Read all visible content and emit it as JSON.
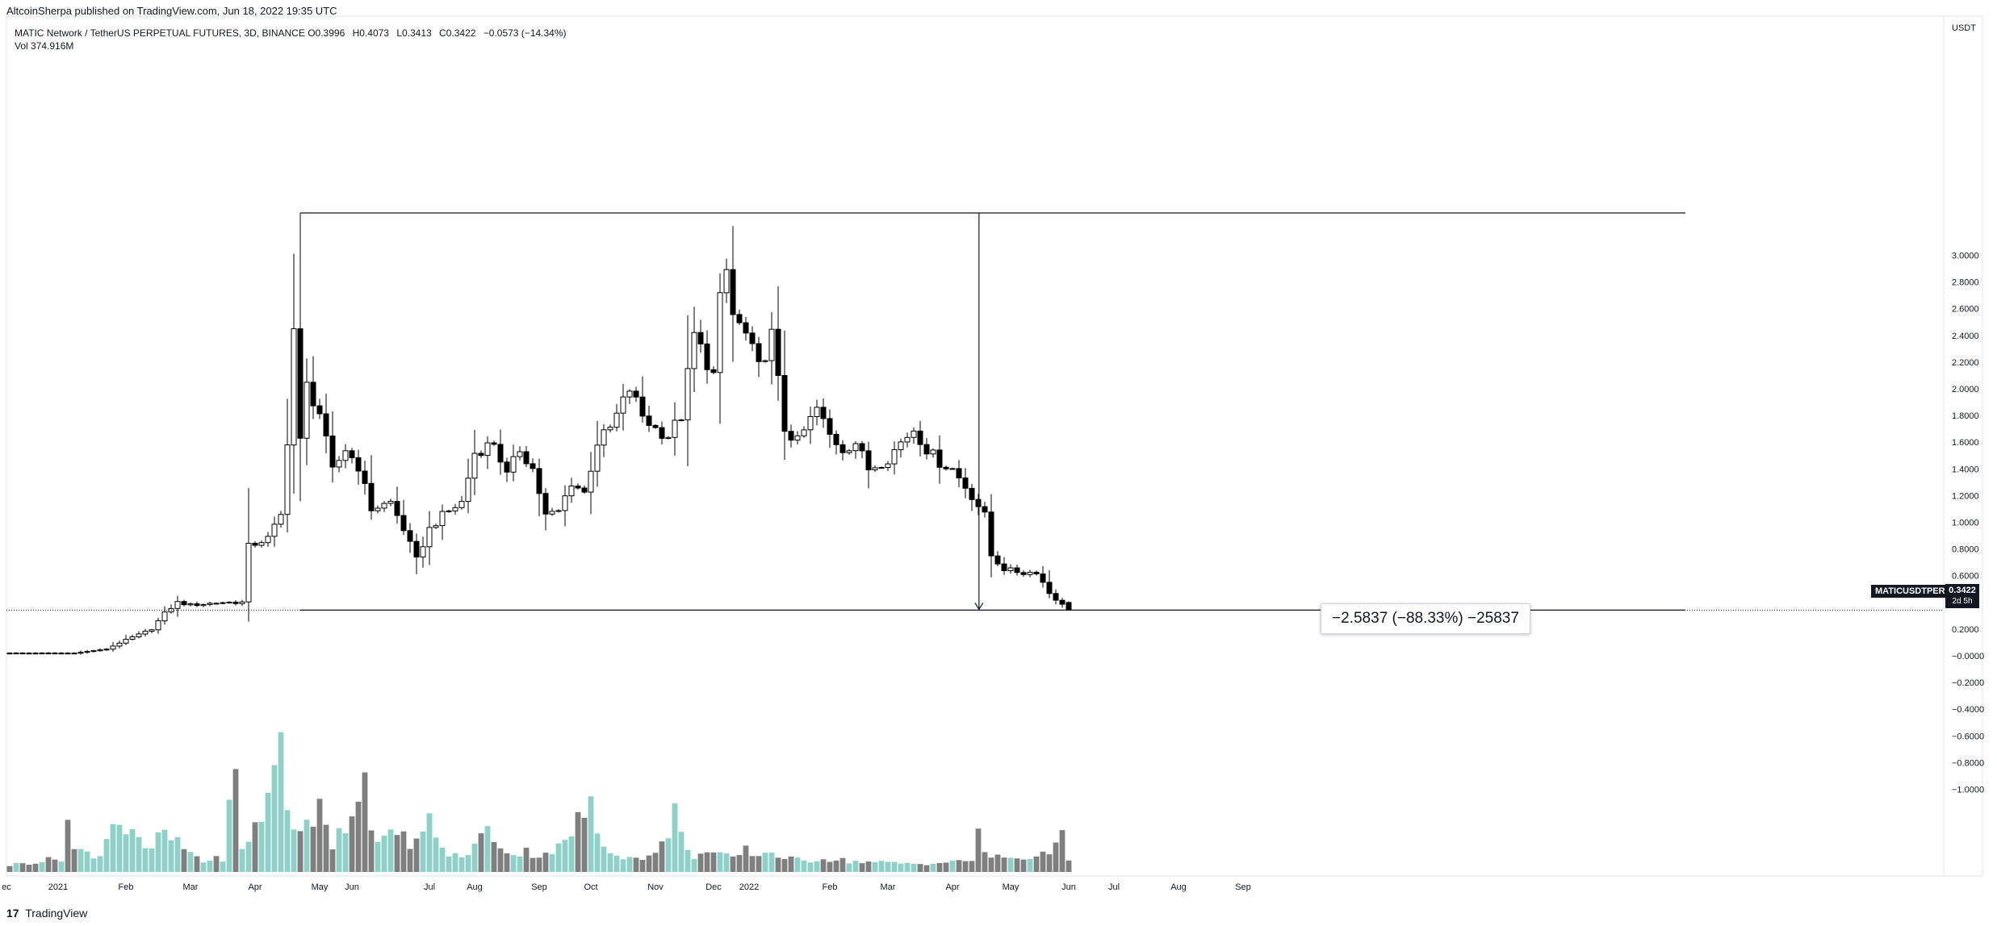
{
  "header": {
    "publisher": "AltcoinSherpa published on TradingView.com, Jun 18, 2022 19:35 UTC",
    "symbol": "MATIC Network / TetherUS PERPETUAL FUTURES, 3D, BINANCE",
    "ohlc": {
      "o": "O0.3996",
      "h": "H0.4073",
      "l": "L0.3413",
      "c": "C0.3422",
      "chg": "−0.0573 (−14.34%)"
    },
    "volume": "Vol  374.916M"
  },
  "axis_currency": "USDT",
  "symbol_tag": "MATICUSDTPERP",
  "last_price": "0.3422",
  "countdown": "2d 5h",
  "measure_label": "−2.5837 (−88.33%) −25837",
  "footer": {
    "logo_mark": "17",
    "brand": "TradingView"
  },
  "colors": {
    "up": "#ffffff",
    "down": "#000000",
    "vol_up": "#8fd1c9",
    "vol_down": "#7f7f7f",
    "outline": "#000000"
  },
  "chart_data": {
    "type": "candlestick",
    "timeframe": "3D",
    "y_ticks": [
      "3.0000",
      "2.8000",
      "2.6000",
      "2.4000",
      "2.2000",
      "2.0000",
      "1.8000",
      "1.6000",
      "1.4000",
      "1.2000",
      "1.0000",
      "0.8000",
      "0.6000",
      "0.4000",
      "0.2000",
      "−0.0000",
      "−0.2000",
      "−0.4000",
      "−0.6000",
      "−0.8000",
      "−1.0000"
    ],
    "x_ticks": [
      "ec",
      "2021",
      "Feb",
      "Mar",
      "Apr",
      "May",
      "Jun",
      "Jul",
      "Aug",
      "Sep",
      "Oct",
      "Nov",
      "Dec",
      "2022",
      "Feb",
      "Mar",
      "Apr",
      "May",
      "Jun",
      "Jul",
      "Aug",
      "Sep"
    ],
    "ylim": [
      -1.0,
      3.0
    ],
    "price_keys": [
      [
        0,
        0.02
      ],
      [
        10,
        0.02
      ],
      [
        15,
        0.05
      ],
      [
        18,
        0.12
      ],
      [
        22,
        0.2
      ],
      [
        24,
        0.32
      ],
      [
        26,
        0.4
      ],
      [
        28,
        0.38
      ],
      [
        33,
        0.4
      ],
      [
        36,
        0.4
      ],
      [
        37,
        0.82
      ],
      [
        40,
        0.88
      ],
      [
        42,
        1.05
      ],
      [
        43,
        1.62
      ],
      [
        44,
        2.45
      ],
      [
        45,
        1.6
      ],
      [
        46,
        2.02
      ],
      [
        48,
        1.82
      ],
      [
        50,
        1.38
      ],
      [
        52,
        1.55
      ],
      [
        54,
        1.42
      ],
      [
        56,
        1.1
      ],
      [
        59,
        1.15
      ],
      [
        61,
        0.95
      ],
      [
        63,
        0.72
      ],
      [
        65,
        0.95
      ],
      [
        67,
        1.05
      ],
      [
        70,
        1.15
      ],
      [
        72,
        1.52
      ],
      [
        75,
        1.6
      ],
      [
        77,
        1.35
      ],
      [
        79,
        1.55
      ],
      [
        81,
        1.4
      ],
      [
        83,
        1.05
      ],
      [
        85,
        1.08
      ],
      [
        87,
        1.3
      ],
      [
        89,
        1.22
      ],
      [
        91,
        1.6
      ],
      [
        93,
        1.7
      ],
      [
        96,
        2.0
      ],
      [
        98,
        1.8
      ],
      [
        100,
        1.7
      ],
      [
        102,
        1.65
      ],
      [
        104,
        1.8
      ],
      [
        106,
        2.4
      ],
      [
        107,
        2.3
      ],
      [
        109,
        2.1
      ],
      [
        110,
        2.65
      ],
      [
        111,
        2.88
      ],
      [
        112,
        2.55
      ],
      [
        114,
        2.4
      ],
      [
        116,
        2.15
      ],
      [
        118,
        2.4
      ],
      [
        120,
        1.7
      ],
      [
        122,
        1.6
      ],
      [
        125,
        1.85
      ],
      [
        127,
        1.65
      ],
      [
        129,
        1.55
      ],
      [
        131,
        1.6
      ],
      [
        133,
        1.4
      ],
      [
        136,
        1.48
      ],
      [
        138,
        1.6
      ],
      [
        140,
        1.7
      ],
      [
        142,
        1.55
      ],
      [
        144,
        1.45
      ],
      [
        146,
        1.4
      ],
      [
        149,
        1.2
      ],
      [
        151,
        1.05
      ],
      [
        152,
        0.75
      ],
      [
        154,
        0.65
      ],
      [
        157,
        0.62
      ],
      [
        159,
        0.63
      ],
      [
        161,
        0.47
      ],
      [
        163,
        0.38
      ],
      [
        164,
        0.3422
      ]
    ],
    "volume_keys": [
      [
        0,
        0.05
      ],
      [
        8,
        0.1
      ],
      [
        9,
        0.38
      ],
      [
        10,
        0.16
      ],
      [
        14,
        0.12
      ],
      [
        16,
        0.4
      ],
      [
        18,
        0.3
      ],
      [
        20,
        0.22
      ],
      [
        22,
        0.14
      ],
      [
        23,
        0.3
      ],
      [
        30,
        0.08
      ],
      [
        33,
        0.1
      ],
      [
        34,
        0.45
      ],
      [
        35,
        0.7
      ],
      [
        36,
        0.15
      ],
      [
        38,
        0.35
      ],
      [
        40,
        0.5
      ],
      [
        41,
        0.8
      ],
      [
        42,
        0.98
      ],
      [
        43,
        0.5
      ],
      [
        45,
        0.25
      ],
      [
        46,
        0.35
      ],
      [
        47,
        0.3
      ],
      [
        48,
        0.6
      ],
      [
        50,
        0.2
      ],
      [
        53,
        0.45
      ],
      [
        55,
        0.7
      ],
      [
        56,
        0.4
      ],
      [
        57,
        0.2
      ],
      [
        60,
        0.28
      ],
      [
        62,
        0.22
      ],
      [
        64,
        0.25
      ],
      [
        65,
        0.42
      ],
      [
        67,
        0.15
      ],
      [
        70,
        0.1
      ],
      [
        74,
        0.3
      ],
      [
        76,
        0.2
      ],
      [
        78,
        0.12
      ],
      [
        80,
        0.15
      ],
      [
        82,
        0.12
      ],
      [
        86,
        0.2
      ],
      [
        88,
        0.38
      ],
      [
        90,
        0.46
      ],
      [
        91,
        0.28
      ],
      [
        92,
        0.2
      ],
      [
        94,
        0.14
      ],
      [
        96,
        0.1
      ],
      [
        100,
        0.12
      ],
      [
        102,
        0.3
      ],
      [
        103,
        0.45
      ],
      [
        104,
        0.25
      ],
      [
        106,
        0.12
      ],
      [
        108,
        0.14
      ],
      [
        110,
        0.12
      ],
      [
        112,
        0.1
      ],
      [
        114,
        0.16
      ],
      [
        116,
        0.12
      ],
      [
        118,
        0.15
      ],
      [
        120,
        0.1
      ],
      [
        123,
        0.08
      ],
      [
        126,
        0.1
      ],
      [
        130,
        0.08
      ],
      [
        134,
        0.07
      ],
      [
        140,
        0.06
      ],
      [
        146,
        0.07
      ],
      [
        149,
        0.09
      ],
      [
        150,
        0.3
      ],
      [
        151,
        0.12
      ],
      [
        156,
        0.1
      ],
      [
        160,
        0.12
      ],
      [
        161,
        0.16
      ],
      [
        162,
        0.28
      ],
      [
        163,
        0.28
      ],
      [
        164,
        0.07
      ]
    ]
  }
}
